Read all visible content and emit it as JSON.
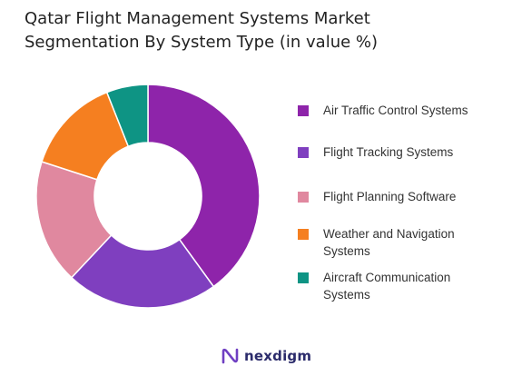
{
  "title": {
    "line1": "Qatar Flight Management Systems Market",
    "line2": "Segmentation By System Type (in value %)"
  },
  "chart_data": {
    "type": "pie",
    "donut": true,
    "title": "Qatar Flight Management Systems Market Segmentation By System Type (in value %)",
    "legend_position": "right",
    "categories": [
      "Air Traffic Control Systems",
      "Flight Tracking Systems",
      "Flight Planning Software",
      "Weather and Navigation Systems",
      "Aircraft Communication Systems"
    ],
    "legend_labels": [
      [
        "Air Traffic Control Systems"
      ],
      [
        "Flight Tracking Systems"
      ],
      [
        "Flight Planning Software"
      ],
      [
        "Weather and Navigation",
        "Systems"
      ],
      [
        "Aircraft Communication",
        "Systems"
      ]
    ],
    "values": [
      40,
      22,
      18,
      14,
      6
    ],
    "colors": [
      "#8E24AA",
      "#7F3FBF",
      "#E0889F",
      "#F57F20",
      "#0E9484"
    ]
  },
  "brand": {
    "name": "nexdigm",
    "logo_icon": "nexdigm-logo-icon"
  }
}
